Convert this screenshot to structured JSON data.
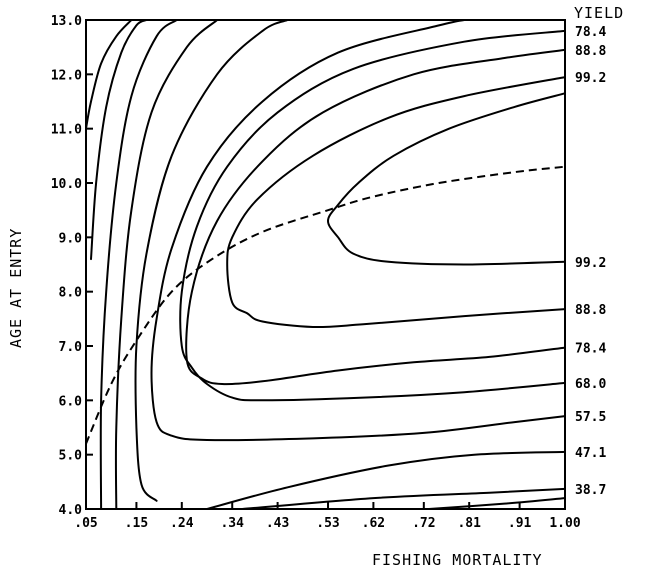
{
  "chart_data": {
    "type": "contour",
    "title": "",
    "xlabel": "FISHING MORTALITY",
    "ylabel": "AGE AT ENTRY",
    "legend_title": "YIELD",
    "xlim": [
      0.05,
      1.0
    ],
    "ylim": [
      4.0,
      13.0
    ],
    "x_ticks": [
      {
        "value": 0.05,
        "label": ".05"
      },
      {
        "value": 0.15,
        "label": ".15"
      },
      {
        "value": 0.24,
        "label": ".24"
      },
      {
        "value": 0.34,
        "label": ".34"
      },
      {
        "value": 0.43,
        "label": ".43"
      },
      {
        "value": 0.53,
        "label": ".53"
      },
      {
        "value": 0.62,
        "label": ".62"
      },
      {
        "value": 0.72,
        "label": ".72"
      },
      {
        "value": 0.81,
        "label": ".81"
      },
      {
        "value": 0.91,
        "label": ".91"
      },
      {
        "value": 1.0,
        "label": "1.00"
      }
    ],
    "y_ticks": [
      {
        "value": 4,
        "label": "4.0"
      },
      {
        "value": 5,
        "label": "5.0"
      },
      {
        "value": 6,
        "label": "6.0"
      },
      {
        "value": 7,
        "label": "7.0"
      },
      {
        "value": 8,
        "label": "8.0"
      },
      {
        "value": 9,
        "label": "9.0"
      },
      {
        "value": 10,
        "label": "10.0"
      },
      {
        "value": 11,
        "label": "11.0"
      },
      {
        "value": 12,
        "label": "12.0"
      },
      {
        "value": 13,
        "label": "13.0"
      }
    ],
    "upper_labels": [
      {
        "label": "78.4",
        "y": 12.8
      },
      {
        "label": "88.8",
        "y": 12.45
      },
      {
        "label": "99.2",
        "y": 11.95
      }
    ],
    "lower_labels": [
      {
        "label": "99.2",
        "y": 8.55
      },
      {
        "label": "88.8",
        "y": 7.68
      },
      {
        "label": "78.4",
        "y": 6.97
      },
      {
        "label": "68.0",
        "y": 6.32
      },
      {
        "label": "57.5",
        "y": 5.71
      },
      {
        "label": "47.1",
        "y": 5.05
      },
      {
        "label": "38.7",
        "y": 4.37
      }
    ],
    "contours": [
      {
        "points": [
          [
            0.05,
            11.0
          ],
          [
            0.06,
            11.5
          ],
          [
            0.08,
            12.2
          ],
          [
            0.11,
            12.7
          ],
          [
            0.14,
            13.0
          ]
        ]
      },
      {
        "points": [
          [
            0.06,
            8.6
          ],
          [
            0.07,
            10.0
          ],
          [
            0.09,
            11.4
          ],
          [
            0.12,
            12.4
          ],
          [
            0.15,
            12.9
          ],
          [
            0.17,
            13.0
          ]
        ]
      },
      {
        "points": [
          [
            0.08,
            4.0
          ],
          [
            0.08,
            6.0
          ],
          [
            0.09,
            8.0
          ],
          [
            0.11,
            10.0
          ],
          [
            0.14,
            11.6
          ],
          [
            0.19,
            12.7
          ],
          [
            0.23,
            13.0
          ]
        ]
      },
      {
        "points": [
          [
            0.11,
            4.0
          ],
          [
            0.11,
            5.5
          ],
          [
            0.12,
            7.5
          ],
          [
            0.14,
            9.5
          ],
          [
            0.18,
            11.3
          ],
          [
            0.25,
            12.5
          ],
          [
            0.31,
            13.0
          ]
        ]
      },
      {
        "points": [
          [
            0.19,
            4.15
          ],
          [
            0.16,
            4.45
          ],
          [
            0.15,
            5.5
          ],
          [
            0.15,
            7.0
          ],
          [
            0.17,
            8.7
          ],
          [
            0.22,
            10.5
          ],
          [
            0.31,
            12.0
          ],
          [
            0.4,
            12.8
          ],
          [
            0.45,
            13.0
          ]
        ]
      },
      {
        "points": [
          [
            0.29,
            4.0
          ],
          [
            0.45,
            4.4
          ],
          [
            0.65,
            4.8
          ],
          [
            0.82,
            5.0
          ],
          [
            1.0,
            5.05
          ]
        ]
      },
      {
        "points": [
          [
            0.36,
            4.0
          ],
          [
            0.62,
            4.2
          ],
          [
            0.85,
            4.3
          ],
          [
            1.0,
            4.37
          ]
        ]
      },
      {
        "points": [
          [
            0.73,
            4.0
          ],
          [
            0.88,
            4.1
          ],
          [
            1.0,
            4.2
          ]
        ]
      },
      {
        "points": [
          [
            1.0,
            5.71
          ],
          [
            0.9,
            5.6
          ],
          [
            0.72,
            5.4
          ],
          [
            0.5,
            5.3
          ],
          [
            0.29,
            5.27
          ],
          [
            0.22,
            5.35
          ],
          [
            0.19,
            5.6
          ],
          [
            0.18,
            6.5
          ],
          [
            0.19,
            7.5
          ],
          [
            0.22,
            8.8
          ],
          [
            0.29,
            10.3
          ],
          [
            0.4,
            11.5
          ],
          [
            0.55,
            12.4
          ],
          [
            0.75,
            12.9
          ],
          [
            0.8,
            13.0
          ]
        ]
      },
      {
        "points": [
          [
            1.0,
            6.32
          ],
          [
            0.8,
            6.15
          ],
          [
            0.6,
            6.05
          ],
          [
            0.4,
            6.0
          ],
          [
            0.34,
            6.05
          ],
          [
            0.29,
            6.3
          ],
          [
            0.26,
            6.6
          ],
          [
            0.24,
            7.0
          ],
          [
            0.24,
            8.0
          ],
          [
            0.27,
            9.2
          ],
          [
            0.33,
            10.3
          ],
          [
            0.43,
            11.3
          ],
          [
            0.58,
            12.1
          ],
          [
            0.8,
            12.6
          ],
          [
            1.0,
            12.8
          ]
        ]
      },
      {
        "points": [
          [
            1.0,
            6.97
          ],
          [
            0.85,
            6.8
          ],
          [
            0.7,
            6.7
          ],
          [
            0.55,
            6.55
          ],
          [
            0.4,
            6.35
          ],
          [
            0.32,
            6.3
          ],
          [
            0.28,
            6.4
          ],
          [
            0.25,
            6.75
          ],
          [
            0.26,
            8.0
          ],
          [
            0.31,
            9.3
          ],
          [
            0.4,
            10.4
          ],
          [
            0.52,
            11.3
          ],
          [
            0.7,
            12.0
          ],
          [
            0.88,
            12.3
          ],
          [
            1.0,
            12.45
          ]
        ]
      },
      {
        "points": [
          [
            1.0,
            7.68
          ],
          [
            0.8,
            7.55
          ],
          [
            0.6,
            7.4
          ],
          [
            0.5,
            7.35
          ],
          [
            0.4,
            7.45
          ],
          [
            0.37,
            7.6
          ],
          [
            0.34,
            7.8
          ],
          [
            0.33,
            8.5
          ],
          [
            0.34,
            9.0
          ],
          [
            0.39,
            9.7
          ],
          [
            0.5,
            10.5
          ],
          [
            0.65,
            11.2
          ],
          [
            0.8,
            11.6
          ],
          [
            1.0,
            11.95
          ]
        ]
      },
      {
        "points": [
          [
            1.0,
            8.55
          ],
          [
            0.8,
            8.5
          ],
          [
            0.65,
            8.55
          ],
          [
            0.58,
            8.7
          ],
          [
            0.55,
            9.0
          ],
          [
            0.53,
            9.3
          ],
          [
            0.55,
            9.6
          ],
          [
            0.59,
            10.0
          ],
          [
            0.66,
            10.5
          ],
          [
            0.77,
            11.0
          ],
          [
            0.9,
            11.4
          ],
          [
            1.0,
            11.65
          ]
        ]
      }
    ],
    "dashed_line": [
      [
        0.05,
        5.2
      ],
      [
        0.1,
        6.3
      ],
      [
        0.15,
        7.1
      ],
      [
        0.22,
        8.0
      ],
      [
        0.3,
        8.6
      ],
      [
        0.4,
        9.1
      ],
      [
        0.53,
        9.5
      ],
      [
        0.62,
        9.75
      ],
      [
        0.75,
        10.0
      ],
      [
        0.9,
        10.2
      ],
      [
        1.0,
        10.3
      ]
    ]
  }
}
